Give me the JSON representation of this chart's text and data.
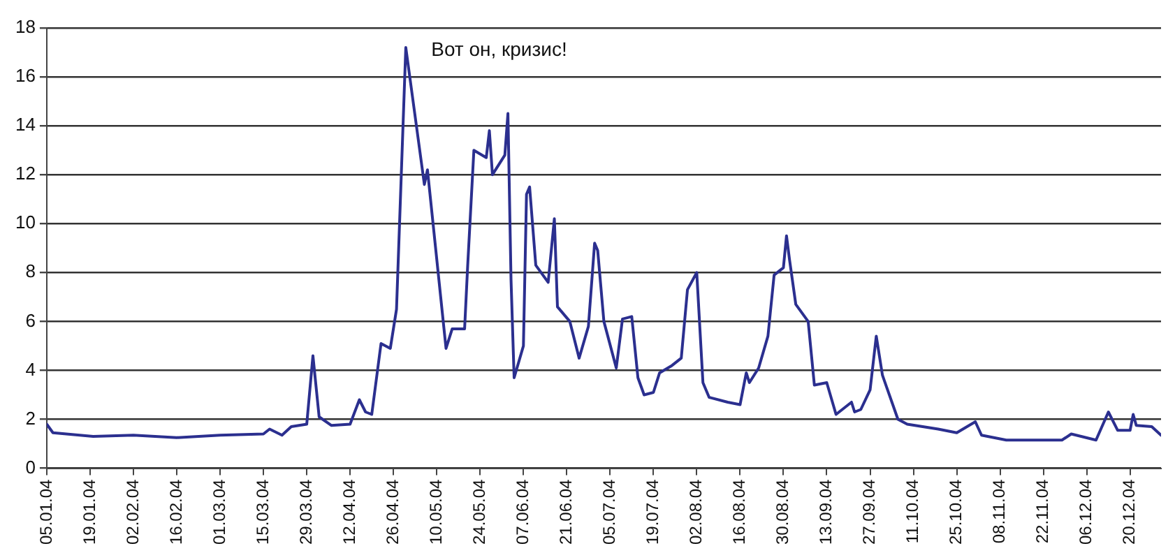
{
  "chart_data": {
    "type": "line",
    "x": [
      "--01-05",
      "--01-07",
      "--01-20",
      "--02-02",
      "--02-16",
      "--03-01",
      "--03-15",
      "--03-17",
      "--03-21",
      "--03-24",
      "--03-29",
      "--03-31",
      "--04-02",
      "--04-06",
      "--04-12",
      "--04-15",
      "--04-17",
      "--04-19",
      "--04-22",
      "--04-25",
      "--04-27",
      "--04-30",
      "--05-06",
      "--05-07",
      "--05-13",
      "--05-15",
      "--05-19",
      "--05-20",
      "--05-22",
      "--05-26",
      "--05-27",
      "--05-28",
      "--06-01",
      "--06-02",
      "--06-03",
      "--06-04",
      "--06-07",
      "--06-08",
      "--06-09",
      "--06-11",
      "--06-15",
      "--06-17",
      "--06-18",
      "--06-22",
      "--06-25",
      "--06-28",
      "--06-30",
      "--07-01",
      "--07-03",
      "--07-07",
      "--07-09",
      "--07-12",
      "--07-14",
      "--07-16",
      "--07-19",
      "--07-21",
      "--07-25",
      "--07-28",
      "--07-30",
      "--08-02",
      "--08-04",
      "--08-06",
      "--08-12",
      "--08-16",
      "--08-18",
      "--08-19",
      "--08-22",
      "--08-25",
      "--08-27",
      "--08-30",
      "--08-31",
      "--09-01",
      "--09-03",
      "--09-07",
      "--09-09",
      "--09-13",
      "--09-16",
      "--09-21",
      "--09-22",
      "--09-24",
      "--09-27",
      "--09-29",
      "--10-01",
      "--10-06",
      "--10-09",
      "--10-19",
      "--10-25",
      "--10-31",
      "--11-02",
      "--11-10",
      "--11-28",
      "--12-01",
      "--12-09",
      "--12-13",
      "--12-16",
      "--12-20",
      "--12-21",
      "--12-22",
      "--12-27",
      "--12-30"
    ],
    "series": [
      {
        "color": "#2b2f8f",
        "values": [
          1.8,
          1.45,
          1.3,
          1.35,
          1.25,
          1.35,
          1.4,
          1.6,
          1.35,
          1.7,
          1.8,
          4.6,
          2.1,
          1.75,
          1.8,
          2.8,
          2.3,
          2.2,
          5.1,
          4.9,
          6.5,
          17.2,
          11.6,
          12.2,
          4.9,
          5.7,
          5.7,
          8.3,
          13,
          12.7,
          13.8,
          12,
          12.8,
          14.5,
          7.7,
          3.7,
          5,
          11.2,
          11.5,
          8.3,
          7.6,
          10.2,
          6.6,
          6,
          4.5,
          5.8,
          9.2,
          8.9,
          6,
          4.1,
          6.1,
          6.2,
          3.7,
          3,
          3.1,
          3.9,
          4.2,
          4.5,
          7.3,
          8,
          3.5,
          2.9,
          2.7,
          2.6,
          3.9,
          3.5,
          4.1,
          5.4,
          7.9,
          8.2,
          9.5,
          8.5,
          6.7,
          6,
          3.4,
          3.5,
          2.2,
          2.7,
          2.3,
          2.4,
          3.2,
          5.4,
          3.8,
          2,
          1.8,
          1.6,
          1.45,
          1.9,
          1.35,
          1.15,
          1.15,
          1.4,
          1.15,
          2.3,
          1.55,
          1.55,
          2.2,
          1.75,
          1.7,
          1.35
        ]
      }
    ],
    "xlim": [
      "--01-05",
      "--12-30"
    ],
    "xticks": [
      {
        "value": "--01-05",
        "label": "05.01.04"
      },
      {
        "value": "--01-19",
        "label": "19.01.04"
      },
      {
        "value": "--02-02",
        "label": "02.02.04"
      },
      {
        "value": "--02-16",
        "label": "16.02.04"
      },
      {
        "value": "--03-01",
        "label": "01.03.04"
      },
      {
        "value": "--03-15",
        "label": "15.03.04"
      },
      {
        "value": "--03-29",
        "label": "29.03.04"
      },
      {
        "value": "--04-12",
        "label": "12.04.04"
      },
      {
        "value": "--04-26",
        "label": "26.04.04"
      },
      {
        "value": "--05-10",
        "label": "10.05.04"
      },
      {
        "value": "--05-24",
        "label": "24.05.04"
      },
      {
        "value": "--06-07",
        "label": "07.06.04"
      },
      {
        "value": "--06-21",
        "label": "21.06.04"
      },
      {
        "value": "--07-05",
        "label": "05.07.04"
      },
      {
        "value": "--07-19",
        "label": "19.07.04"
      },
      {
        "value": "--08-02",
        "label": "02.08.04"
      },
      {
        "value": "--08-16",
        "label": "16.08.04"
      },
      {
        "value": "--08-30",
        "label": "30.08.04"
      },
      {
        "value": "--09-13",
        "label": "13.09.04"
      },
      {
        "value": "--09-27",
        "label": "27.09.04"
      },
      {
        "value": "--10-11",
        "label": "11.10.04"
      },
      {
        "value": "--10-25",
        "label": "25.10.04"
      },
      {
        "value": "--11-08",
        "label": "08.11.04"
      },
      {
        "value": "--11-22",
        "label": "22.11.04"
      },
      {
        "value": "--12-06",
        "label": "06.12.04"
      },
      {
        "value": "--12-20",
        "label": "20.12.04"
      }
    ],
    "ylim": [
      0,
      18
    ],
    "yticks": [
      0,
      2,
      4,
      6,
      8,
      10,
      12,
      14,
      16,
      18
    ],
    "grid": "y",
    "legend": false,
    "marker": "none",
    "line_style": "solid",
    "annotations": [
      "Вот он, кризис!"
    ]
  }
}
